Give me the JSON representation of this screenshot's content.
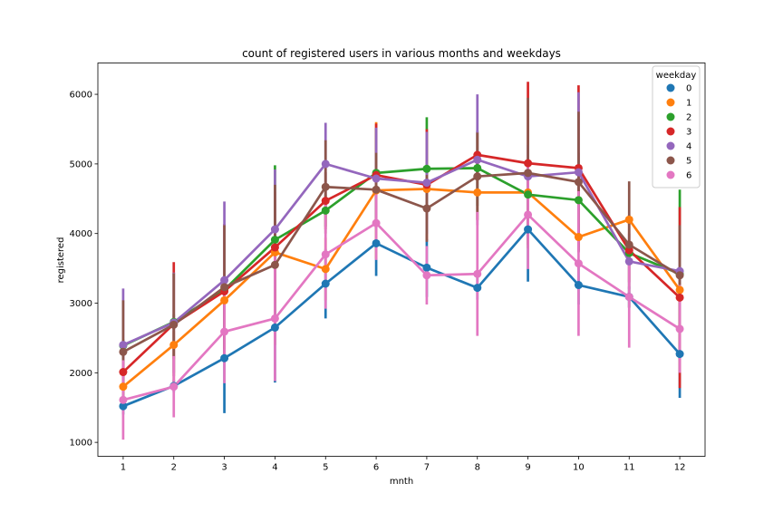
{
  "chart_data": {
    "type": "line",
    "title": "count of registered users in various months and weekdays",
    "xlabel": "mnth",
    "ylabel": "registered",
    "categories": [
      "1",
      "2",
      "3",
      "4",
      "5",
      "6",
      "7",
      "8",
      "9",
      "10",
      "11",
      "12"
    ],
    "yticks": [
      1000,
      2000,
      3000,
      4000,
      5000,
      6000
    ],
    "ylim": [
      800,
      6450
    ],
    "grid": false,
    "legend": {
      "title": "weekday",
      "placement": "top-right"
    },
    "series": [
      {
        "name": "0",
        "color": "#1f77b4",
        "values": [
          1520,
          1810,
          2210,
          2650,
          3280,
          3860,
          3510,
          3220,
          4060,
          3260,
          3090,
          2270
        ],
        "err_low": [
          1400,
          1720,
          1420,
          1860,
          2780,
          3390,
          3090,
          3050,
          3310,
          2980,
          2940,
          1640
        ],
        "err_high": [
          1640,
          1900,
          2990,
          3430,
          3780,
          4330,
          3920,
          3390,
          4800,
          3540,
          3240,
          2900
        ]
      },
      {
        "name": "1",
        "color": "#ff7f0e",
        "values": [
          1800,
          2400,
          3040,
          3730,
          3490,
          4620,
          4640,
          4590,
          4590,
          3950,
          4200,
          3190
        ],
        "err_low": [
          1560,
          2200,
          2960,
          3560,
          3040,
          3640,
          4330,
          4200,
          4450,
          3760,
          4130,
          2860
        ],
        "err_high": [
          2040,
          2600,
          3120,
          3900,
          3940,
          5600,
          4950,
          4980,
          4730,
          4140,
          4270,
          3520
        ]
      },
      {
        "name": "2",
        "color": "#2ca02c",
        "values": [
          2390,
          2730,
          3190,
          3910,
          4330,
          4870,
          4930,
          4940,
          4560,
          4480,
          3720,
          3420
        ],
        "err_low": [
          2300,
          2620,
          3080,
          2840,
          4100,
          4230,
          4200,
          4400,
          4290,
          3800,
          3560,
          2200
        ],
        "err_high": [
          2480,
          2840,
          3300,
          4980,
          4560,
          5510,
          5670,
          5480,
          4830,
          5160,
          3880,
          4630
        ]
      },
      {
        "name": "3",
        "color": "#d62728",
        "values": [
          2010,
          2700,
          3170,
          3800,
          4470,
          4840,
          4700,
          5130,
          5010,
          4940,
          3760,
          3080
        ],
        "err_low": [
          1720,
          1810,
          2200,
          3000,
          4060,
          4100,
          3900,
          4800,
          3840,
          3750,
          3300,
          1780
        ],
        "err_high": [
          2300,
          3590,
          4140,
          4600,
          4880,
          5580,
          5500,
          5460,
          6180,
          6130,
          4220,
          4380
        ]
      },
      {
        "name": "4",
        "color": "#9467bd",
        "values": [
          2400,
          2720,
          3330,
          4060,
          5000,
          4790,
          4730,
          5060,
          4820,
          4880,
          3600,
          3460
        ],
        "err_low": [
          1600,
          2000,
          2200,
          3200,
          4410,
          4060,
          4000,
          4120,
          4370,
          3730,
          3200,
          3300
        ],
        "err_high": [
          3210,
          3440,
          4460,
          4920,
          5590,
          5520,
          5460,
          6000,
          5270,
          6030,
          4000,
          3620
        ]
      },
      {
        "name": "5",
        "color": "#8c564b",
        "values": [
          2300,
          2690,
          3230,
          3550,
          4670,
          4630,
          4360,
          4820,
          4870,
          4740,
          3840,
          3400
        ],
        "err_low": [
          1560,
          1950,
          2340,
          2400,
          4000,
          4100,
          3880,
          4190,
          3790,
          3730,
          2930,
          2680
        ],
        "err_high": [
          3040,
          3430,
          4120,
          4700,
          5340,
          5160,
          4840,
          5450,
          5950,
          5750,
          4750,
          4120
        ]
      },
      {
        "name": "6",
        "color": "#e377c2",
        "values": [
          1610,
          1800,
          2590,
          2780,
          3700,
          4150,
          3400,
          3420,
          4270,
          3570,
          3090,
          2630
        ],
        "err_low": [
          1040,
          1360,
          1850,
          1880,
          2920,
          3620,
          2980,
          2530,
          3490,
          2530,
          2360,
          2000
        ],
        "err_high": [
          2180,
          2240,
          3330,
          3680,
          4480,
          4680,
          3820,
          4310,
          5050,
          4610,
          3820,
          3260
        ]
      }
    ]
  }
}
